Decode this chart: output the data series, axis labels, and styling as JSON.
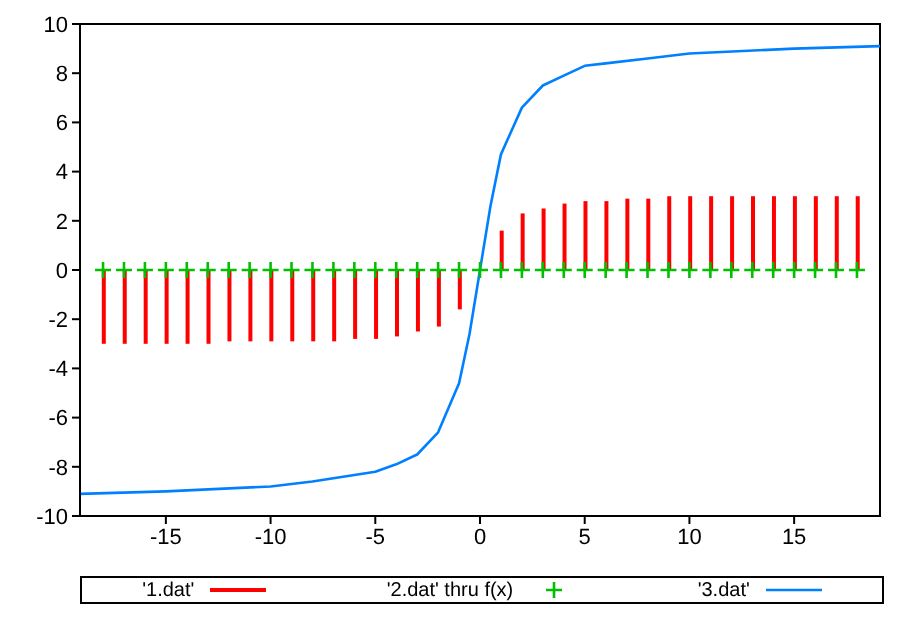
{
  "chart_data": {
    "type": "line",
    "xlim": [
      -19.1,
      19.1
    ],
    "xticks": [
      -15,
      -10,
      -5,
      0,
      5,
      10,
      15
    ],
    "ylim": [
      -10,
      10
    ],
    "yticks": [
      -10,
      -8,
      -6,
      -4,
      -2,
      0,
      2,
      4,
      6,
      8,
      10
    ],
    "grid": false,
    "legend": "bottom",
    "series": [
      {
        "name": "'1.dat'",
        "type": "bar",
        "color": "#ff0000",
        "x": [
          -18,
          -17,
          -16,
          -15,
          -14,
          -13,
          -12,
          -11,
          -10,
          -9,
          -8,
          -7,
          -6,
          -5,
          -4,
          -3,
          -2,
          -1,
          1,
          2,
          3,
          4,
          5,
          6,
          7,
          8,
          9,
          10,
          11,
          12,
          13,
          14,
          15,
          16,
          17,
          18
        ],
        "values": [
          -3.0,
          -3.0,
          -3.0,
          -3.0,
          -3.0,
          -3.0,
          -2.9,
          -2.9,
          -2.9,
          -2.9,
          -2.9,
          -2.9,
          -2.8,
          -2.8,
          -2.7,
          -2.5,
          -2.3,
          -1.6,
          1.6,
          2.3,
          2.5,
          2.7,
          2.8,
          2.8,
          2.9,
          2.9,
          3.0,
          3.0,
          3.0,
          3.0,
          3.0,
          3.0,
          3.0,
          3.0,
          3.0,
          3.0
        ]
      },
      {
        "name": "'2.dat' thru f(x)",
        "type": "scatter",
        "marker": "cross",
        "color": "#00c000",
        "x": [
          -18,
          -17,
          -16,
          -15,
          -14,
          -13,
          -12,
          -11,
          -10,
          -9,
          -8,
          -7,
          -6,
          -5,
          -4,
          -3,
          -2,
          -1,
          0,
          1,
          2,
          3,
          4,
          5,
          6,
          7,
          8,
          9,
          10,
          11,
          12,
          13,
          14,
          15,
          16,
          17,
          18
        ],
        "values": [
          0,
          0,
          0,
          0,
          0,
          0,
          0,
          0,
          0,
          0,
          0,
          0,
          0,
          0,
          0,
          0,
          0,
          0,
          0,
          0,
          0,
          0,
          0,
          0,
          0,
          0,
          0,
          0,
          0,
          0,
          0,
          0,
          0,
          0,
          0,
          0,
          0
        ]
      },
      {
        "name": "'3.dat'",
        "color": "#0080ff",
        "x": [
          -19.1,
          -15,
          -10,
          -8,
          -5,
          -4,
          -3,
          -2,
          -1,
          -0.5,
          0,
          0.5,
          1,
          2,
          3,
          4,
          5,
          6,
          8,
          10,
          15,
          19.1
        ],
        "values": [
          -9.1,
          -9.0,
          -8.8,
          -8.6,
          -8.2,
          -7.9,
          -7.5,
          -6.6,
          -4.6,
          -2.6,
          0,
          2.6,
          4.7,
          6.6,
          7.5,
          7.9,
          8.3,
          8.4,
          8.6,
          8.8,
          9.0,
          9.1
        ]
      }
    ]
  }
}
